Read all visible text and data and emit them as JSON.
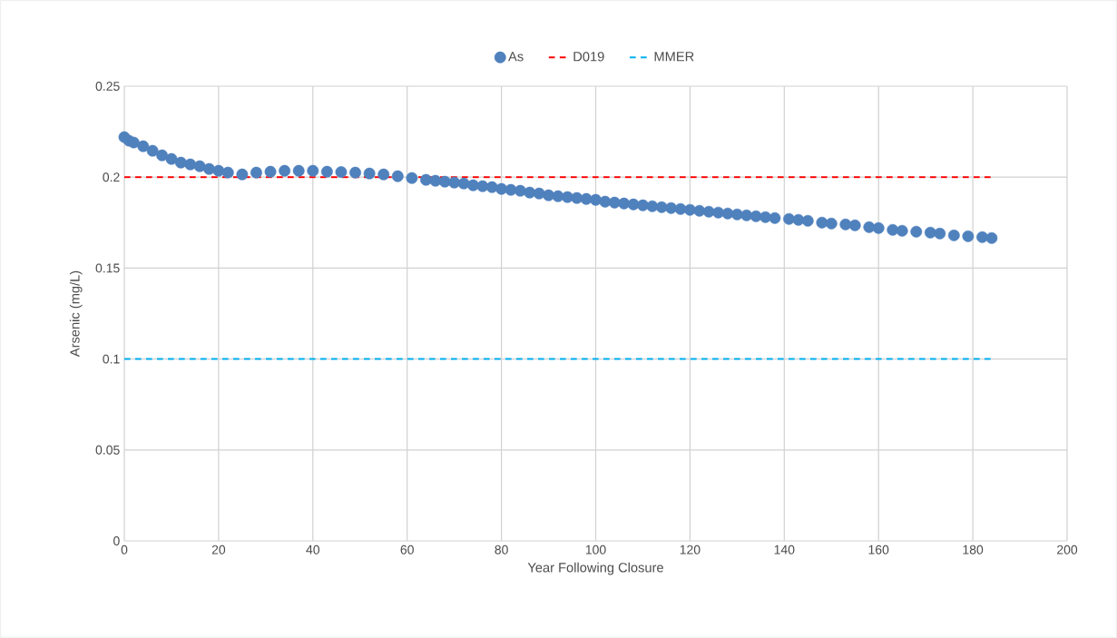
{
  "chart_data": {
    "type": "scatter",
    "xlabel": "Year Following Closure",
    "ylabel": "Arsenic (mg/L)",
    "xlim": [
      0,
      200
    ],
    "xticks": [
      0,
      20,
      40,
      60,
      80,
      100,
      120,
      140,
      160,
      180,
      200
    ],
    "ylim": [
      0,
      0.25
    ],
    "yticks": [
      0,
      0.05,
      0.1,
      0.15,
      0.2,
      0.25
    ],
    "grid": true,
    "legend": "top",
    "series": [
      {
        "name": "As",
        "marker": "circle",
        "color": "#4f81bd",
        "x": [
          0,
          1,
          2,
          4,
          6,
          8,
          10,
          12,
          14,
          16,
          18,
          20,
          22,
          25,
          28,
          31,
          34,
          37,
          40,
          43,
          46,
          49,
          52,
          55,
          58,
          61,
          64,
          66,
          68,
          70,
          72,
          74,
          76,
          78,
          80,
          82,
          84,
          86,
          88,
          90,
          92,
          94,
          96,
          98,
          100,
          102,
          104,
          106,
          108,
          110,
          112,
          114,
          116,
          118,
          120,
          122,
          124,
          126,
          128,
          130,
          132,
          134,
          136,
          138,
          141,
          143,
          145,
          148,
          150,
          153,
          155,
          158,
          160,
          163,
          165,
          168,
          171,
          173,
          176,
          179,
          182,
          184
        ],
        "values": [
          0.222,
          0.22,
          0.219,
          0.217,
          0.2145,
          0.212,
          0.21,
          0.208,
          0.207,
          0.206,
          0.2045,
          0.2035,
          0.2025,
          0.2015,
          0.2025,
          0.203,
          0.2035,
          0.2035,
          0.2035,
          0.203,
          0.2028,
          0.2025,
          0.202,
          0.2015,
          0.2005,
          0.1995,
          0.1985,
          0.198,
          0.1975,
          0.197,
          0.1965,
          0.1955,
          0.195,
          0.1945,
          0.1935,
          0.193,
          0.1925,
          0.1915,
          0.191,
          0.19,
          0.1895,
          0.189,
          0.1885,
          0.188,
          0.1875,
          0.1865,
          0.186,
          0.1855,
          0.185,
          0.1845,
          0.184,
          0.1835,
          0.183,
          0.1825,
          0.182,
          0.1815,
          0.181,
          0.1805,
          0.18,
          0.1795,
          0.179,
          0.1785,
          0.178,
          0.1775,
          0.177,
          0.1765,
          0.176,
          0.175,
          0.1745,
          0.174,
          0.1735,
          0.1725,
          0.172,
          0.171,
          0.1705,
          0.17,
          0.1695,
          0.169,
          0.168,
          0.1675,
          0.167,
          0.1665
        ]
      },
      {
        "name": "D019",
        "type": "line",
        "line_style": "dashed",
        "marker": "none",
        "color": "#ff0000",
        "x": [
          0,
          184
        ],
        "values": [
          0.2,
          0.2
        ]
      },
      {
        "name": "MMER",
        "type": "line",
        "line_style": "dashed",
        "marker": "none",
        "color": "#00b0f0",
        "x": [
          0,
          184
        ],
        "values": [
          0.1,
          0.1
        ]
      }
    ]
  }
}
